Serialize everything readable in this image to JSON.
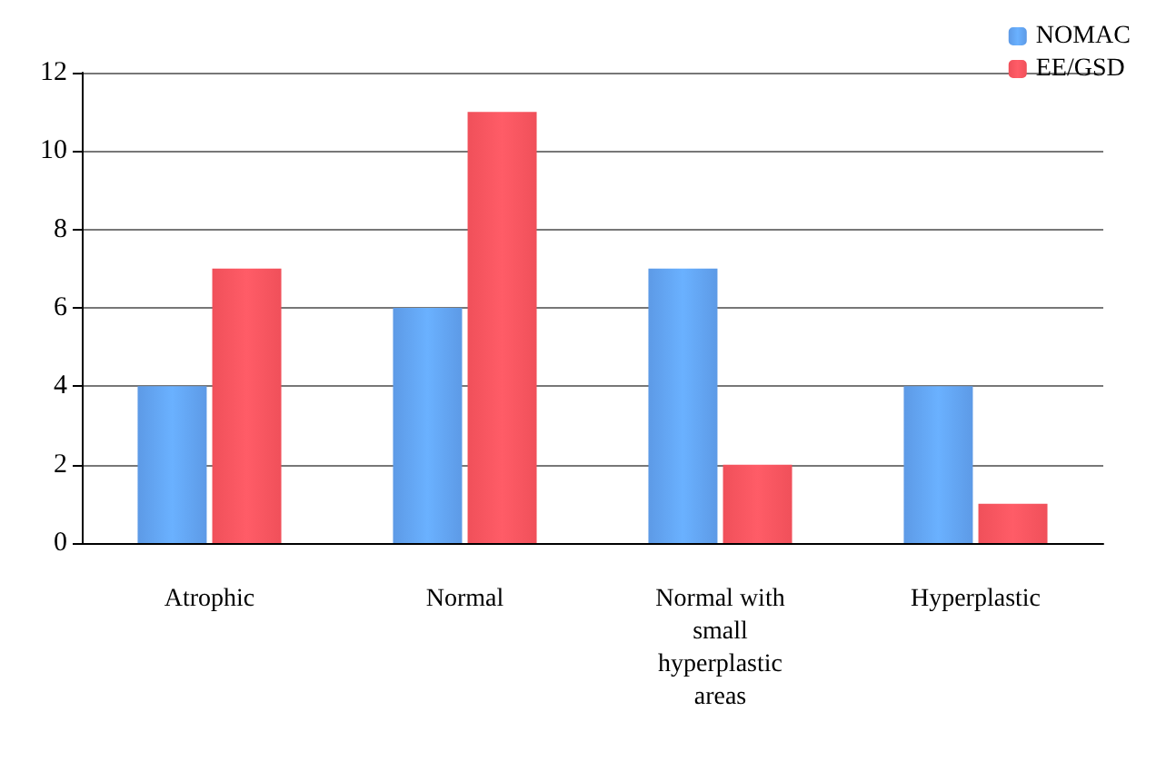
{
  "chart_data": {
    "type": "bar",
    "categories": [
      "Atrophic",
      "Normal",
      "Normal with\nsmall\nhyperplastic\nareas",
      "Hyperplastic"
    ],
    "series": [
      {
        "name": "NOMAC",
        "color": "#5d9ae6",
        "values": [
          4,
          6,
          7,
          4
        ]
      },
      {
        "name": "EE/GSD",
        "color": "#f0505a",
        "values": [
          7,
          11,
          2,
          1
        ]
      }
    ],
    "ylim": [
      0,
      12
    ],
    "yticks": [
      0,
      2,
      4,
      6,
      8,
      10,
      12
    ],
    "grid": "y",
    "legend": "top right"
  }
}
